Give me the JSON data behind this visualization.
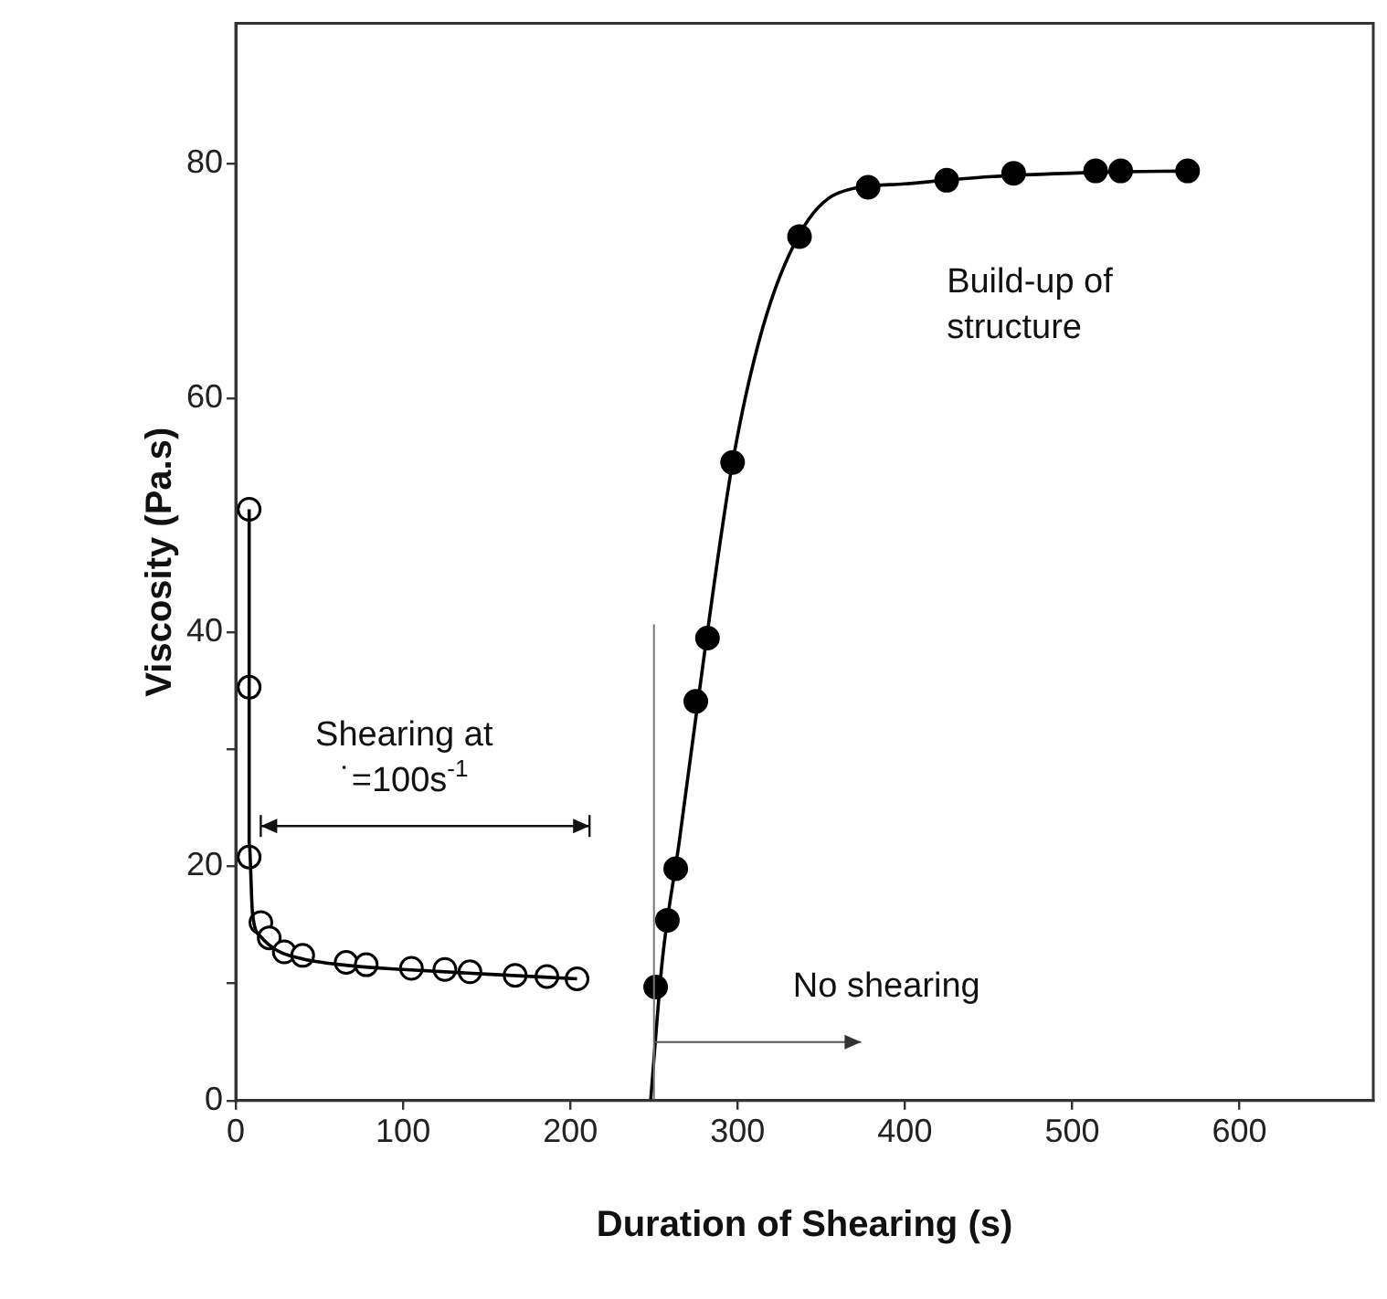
{
  "chart_data": {
    "type": "line",
    "xlabel": "Duration of Shearing (s)",
    "ylabel": "Viscosity (Pa.s)",
    "xlim": [
      0,
      680
    ],
    "xticks": [
      0,
      100,
      200,
      300,
      400,
      500,
      600
    ],
    "ylim": [
      0,
      92
    ],
    "yticks": [
      0,
      {
        "value": 10,
        "label": null
      },
      20,
      {
        "value": 30,
        "label": null
      },
      40,
      60,
      80
    ],
    "grid": false,
    "legend": false,
    "line_style": "solid",
    "series": [
      {
        "type": "line",
        "color": "#000000",
        "marker": "none",
        "x": [
          8,
          8,
          10,
          15,
          25,
          40,
          70,
          100,
          150,
          204
        ],
        "values": [
          50.5,
          22,
          16,
          14,
          12.8,
          12.1,
          11.5,
          11.2,
          10.8,
          10.4
        ]
      },
      {
        "type": "line",
        "color": "#000000",
        "marker": "none",
        "x": [
          248,
          255,
          265,
          280,
          297,
          315,
          337,
          360,
          400,
          450,
          520,
          569
        ],
        "values": [
          0,
          12,
          22,
          38,
          54.5,
          66,
          74,
          77.5,
          78.3,
          78.9,
          79.3,
          79.4
        ]
      },
      {
        "type": "scatter",
        "color": "#ffffff",
        "marker": "circle",
        "x": [
          8,
          8,
          8,
          15,
          20,
          29,
          40,
          66,
          78,
          105,
          125,
          140,
          167,
          186,
          204
        ],
        "values": [
          50.5,
          35.3,
          20.8,
          15.2,
          13.9,
          12.7,
          12.4,
          11.8,
          11.6,
          11.3,
          11.2,
          11,
          10.7,
          10.6,
          10.4
        ]
      },
      {
        "type": "scatter",
        "color": "#000000",
        "marker": "circle",
        "x": [
          251,
          258,
          263,
          275,
          282,
          297,
          337,
          378,
          425,
          465,
          514,
          529,
          569
        ],
        "values": [
          9.7,
          15.4,
          19.8,
          34.1,
          39.5,
          54.5,
          73.8,
          78,
          78.6,
          79.2,
          79.4,
          79.4,
          79.4
        ]
      }
    ],
    "ref_lines": [
      {
        "axis": "x",
        "value": 250,
        "color": "#777777"
      }
    ],
    "annotations": [
      "Shearing at\n˙=100s$^{-1}$",
      "Build-up of\nstructure",
      {
        "text": "No shearing",
        "x": 250,
        "y": 5
      }
    ]
  }
}
